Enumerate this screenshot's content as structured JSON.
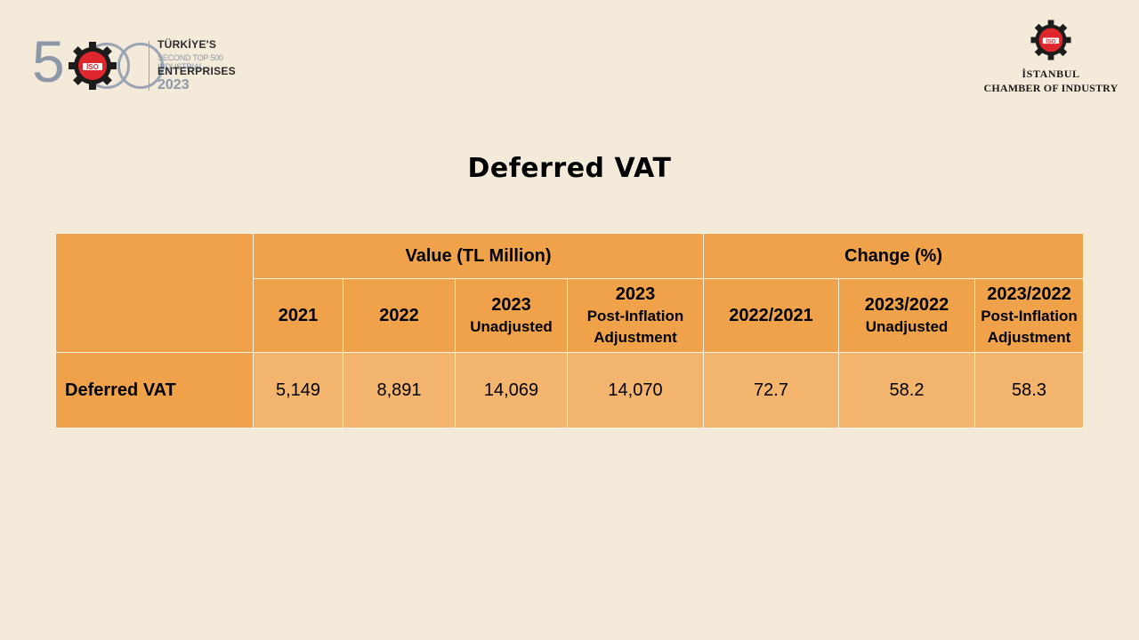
{
  "brand_left": {
    "big_number": "500",
    "line1": "TÜRKİYE'S",
    "line2": "SECOND TOP 500 INDUSTRIAL",
    "line3": "ENTERPRISES",
    "line4": "2023",
    "badge": "İSO"
  },
  "brand_right": {
    "badge": "İSO",
    "name_line1": "İSTANBUL",
    "name_line2": "CHAMBER OF INDUSTRY"
  },
  "title": "Deferred VAT",
  "table": {
    "groups": [
      {
        "label": "Value (TL Million)"
      },
      {
        "label": "Change (%)"
      }
    ],
    "columns": [
      {
        "main": "2021",
        "sub": ""
      },
      {
        "main": "2022",
        "sub": ""
      },
      {
        "main": "2023",
        "sub": "Unadjusted"
      },
      {
        "main": "2023",
        "sub": "Post-Inflation Adjustment"
      },
      {
        "main": "2022/2021",
        "sub": ""
      },
      {
        "main": "2023/2022",
        "sub": "Unadjusted"
      },
      {
        "main": "2023/2022",
        "sub": "Post-Inflation Adjustment"
      }
    ],
    "rows": [
      {
        "label": "Deferred VAT",
        "values": [
          "5,149",
          "8,891",
          "14,069",
          "14,070",
          "72.7",
          "58.2",
          "58.3"
        ]
      }
    ]
  },
  "colors": {
    "background": "#f3ead9",
    "header_orange": "#f0a24a",
    "cell_orange": "#f3b46d",
    "logo_red": "#e0262d"
  }
}
